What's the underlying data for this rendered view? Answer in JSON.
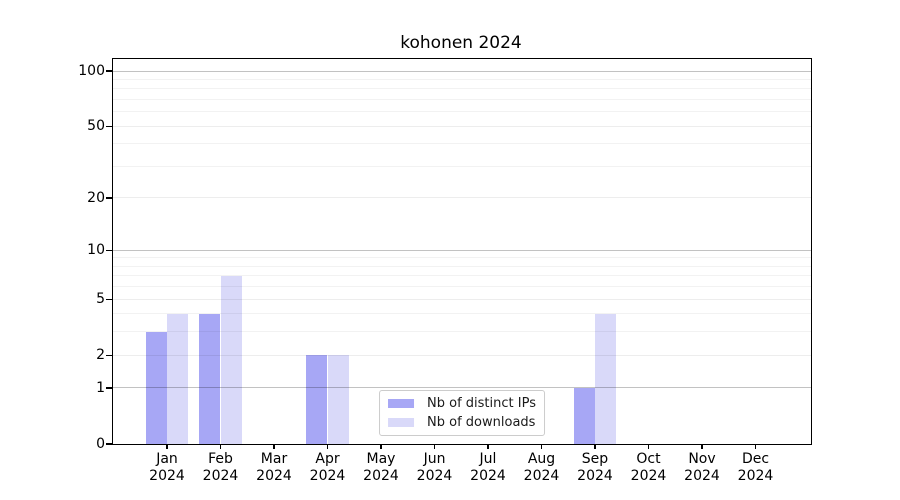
{
  "chart_data": {
    "type": "bar",
    "title": "kohonen 2024",
    "categories": [
      "Jan",
      "Feb",
      "Mar",
      "Apr",
      "May",
      "Jun",
      "Jul",
      "Aug",
      "Sep",
      "Oct",
      "Nov",
      "Dec"
    ],
    "year_label": "2024",
    "series": [
      {
        "name": "Nb of distinct IPs",
        "color": "#a7a7f5",
        "values": [
          3,
          4,
          0,
          2,
          0,
          0,
          0,
          0,
          1,
          0,
          0,
          0
        ]
      },
      {
        "name": "Nb of downloads",
        "color": "#d9d9f9",
        "values": [
          4,
          7,
          0,
          2,
          0,
          0,
          0,
          0,
          4,
          0,
          0,
          0
        ]
      }
    ],
    "y_axis": {
      "scale": "log1p",
      "ylim": [
        0,
        117
      ],
      "tick_labels": [
        0,
        1,
        2,
        5,
        10,
        20,
        50,
        100
      ],
      "strong_gridlines": [
        1,
        10,
        100
      ],
      "weak_gridlines": [
        2,
        5,
        20,
        50
      ],
      "minor_gridlines": [
        3,
        4,
        6,
        7,
        8,
        9,
        30,
        40,
        60,
        70,
        80,
        90
      ]
    },
    "legend": {
      "position": "lower center"
    },
    "grid": true,
    "background_color": "#ffffff",
    "axis_color": "#000000"
  }
}
